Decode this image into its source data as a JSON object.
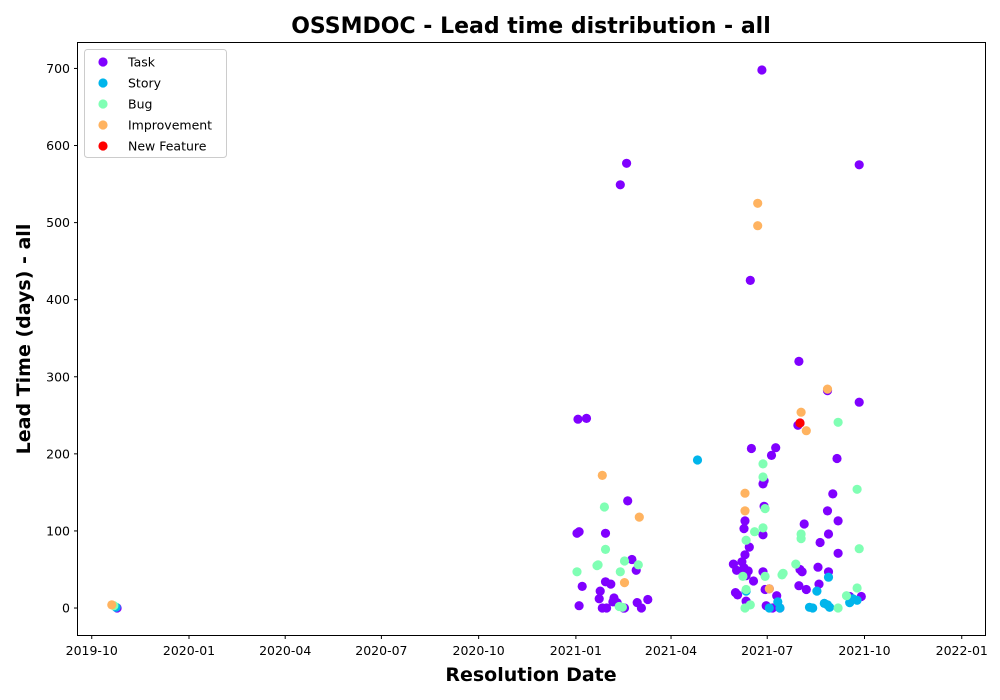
{
  "chart_data": {
    "type": "scatter",
    "title": "OSSMDOC - Lead time distribution - all",
    "xlabel": "Resolution Date",
    "ylabel": "Lead Time (days) - all",
    "x_ticks": [
      "2019-10",
      "2020-01",
      "2020-04",
      "2020-07",
      "2020-10",
      "2021-01",
      "2021-04",
      "2021-07",
      "2021-10",
      "2022-01"
    ],
    "y_ticks": [
      0,
      100,
      200,
      300,
      400,
      500,
      600,
      700
    ],
    "xlim": [
      "2019-09-18",
      "2022-01-23"
    ],
    "ylim": [
      -35,
      733
    ],
    "grid": false,
    "legend_position": "top-left",
    "series": [
      {
        "name": "Task",
        "color": "#8000ff",
        "points": [
          [
            "2019-10-25",
            0
          ],
          [
            "2021-01-02",
            97
          ],
          [
            "2021-01-03",
            245
          ],
          [
            "2021-01-04",
            99
          ],
          [
            "2021-01-04",
            3
          ],
          [
            "2021-01-07",
            28
          ],
          [
            "2021-01-11",
            246
          ],
          [
            "2021-01-23",
            12
          ],
          [
            "2021-01-24",
            22
          ],
          [
            "2021-01-26",
            0
          ],
          [
            "2021-01-29",
            34
          ],
          [
            "2021-01-29",
            97
          ],
          [
            "2021-01-30",
            0
          ],
          [
            "2021-02-03",
            31
          ],
          [
            "2021-02-05",
            8
          ],
          [
            "2021-02-06",
            13
          ],
          [
            "2021-02-09",
            7
          ],
          [
            "2021-02-12",
            549
          ],
          [
            "2021-02-15",
            0
          ],
          [
            "2021-02-16",
            0
          ],
          [
            "2021-02-18",
            577
          ],
          [
            "2021-02-19",
            139
          ],
          [
            "2021-02-23",
            63
          ],
          [
            "2021-02-27",
            49
          ],
          [
            "2021-02-28",
            7
          ],
          [
            "2021-03-04",
            0
          ],
          [
            "2021-03-10",
            11
          ],
          [
            "2021-05-30",
            57
          ],
          [
            "2021-06-01",
            20
          ],
          [
            "2021-06-02",
            49
          ],
          [
            "2021-06-03",
            17
          ],
          [
            "2021-06-07",
            60
          ],
          [
            "2021-06-09",
            103
          ],
          [
            "2021-06-09",
            52
          ],
          [
            "2021-06-10",
            47
          ],
          [
            "2021-06-10",
            69
          ],
          [
            "2021-06-10",
            113
          ],
          [
            "2021-06-11",
            9
          ],
          [
            "2021-06-11",
            42
          ],
          [
            "2021-06-13",
            48
          ],
          [
            "2021-06-14",
            79
          ],
          [
            "2021-06-15",
            425
          ],
          [
            "2021-06-16",
            207
          ],
          [
            "2021-06-18",
            35
          ],
          [
            "2021-06-26",
            698
          ],
          [
            "2021-06-27",
            47
          ],
          [
            "2021-06-27",
            95
          ],
          [
            "2021-06-27",
            161
          ],
          [
            "2021-06-28",
            132
          ],
          [
            "2021-06-28",
            165
          ],
          [
            "2021-06-29",
            24
          ],
          [
            "2021-06-30",
            3
          ],
          [
            "2021-07-03",
            25
          ],
          [
            "2021-07-05",
            198
          ],
          [
            "2021-07-06",
            0
          ],
          [
            "2021-07-09",
            208
          ],
          [
            "2021-07-10",
            16
          ],
          [
            "2021-07-13",
            0
          ],
          [
            "2021-07-30",
            237
          ],
          [
            "2021-07-31",
            320
          ],
          [
            "2021-07-31",
            29
          ],
          [
            "2021-08-01",
            50
          ],
          [
            "2021-08-01",
            240
          ],
          [
            "2021-08-03",
            47
          ],
          [
            "2021-08-05",
            109
          ],
          [
            "2021-08-07",
            24
          ],
          [
            "2021-08-18",
            53
          ],
          [
            "2021-08-19",
            31
          ],
          [
            "2021-08-20",
            85
          ],
          [
            "2021-08-27",
            282
          ],
          [
            "2021-08-27",
            126
          ],
          [
            "2021-08-28",
            96
          ],
          [
            "2021-08-28",
            47
          ],
          [
            "2021-09-01",
            148
          ],
          [
            "2021-09-05",
            194
          ],
          [
            "2021-09-06",
            113
          ],
          [
            "2021-09-06",
            71
          ],
          [
            "2021-09-17",
            15
          ],
          [
            "2021-09-26",
            267
          ],
          [
            "2021-09-26",
            575
          ],
          [
            "2021-09-28",
            15
          ]
        ]
      },
      {
        "name": "Story",
        "color": "#00b5eb",
        "points": [
          [
            "2019-10-24",
            1
          ],
          [
            "2021-04-26",
            192
          ],
          [
            "2021-06-11",
            22
          ],
          [
            "2021-07-03",
            0
          ],
          [
            "2021-07-11",
            8
          ],
          [
            "2021-07-13",
            0
          ],
          [
            "2021-08-10",
            1
          ],
          [
            "2021-08-13",
            0
          ],
          [
            "2021-08-17",
            22
          ],
          [
            "2021-08-24",
            6
          ],
          [
            "2021-08-27",
            4
          ],
          [
            "2021-08-28",
            40
          ],
          [
            "2021-08-29",
            1
          ],
          [
            "2021-09-17",
            7
          ],
          [
            "2021-09-20",
            12
          ],
          [
            "2021-09-24",
            10
          ]
        ]
      },
      {
        "name": "Bug",
        "color": "#80ffb4",
        "points": [
          [
            "2019-10-22",
            3
          ],
          [
            "2021-01-02",
            47
          ],
          [
            "2021-01-21",
            55
          ],
          [
            "2021-01-22",
            56
          ],
          [
            "2021-01-28",
            131
          ],
          [
            "2021-01-29",
            76
          ],
          [
            "2021-02-11",
            2
          ],
          [
            "2021-02-12",
            47
          ],
          [
            "2021-02-14",
            1
          ],
          [
            "2021-02-16",
            61
          ],
          [
            "2021-03-01",
            56
          ],
          [
            "2021-06-08",
            41
          ],
          [
            "2021-06-10",
            0
          ],
          [
            "2021-06-11",
            88
          ],
          [
            "2021-06-11",
            24
          ],
          [
            "2021-06-15",
            4
          ],
          [
            "2021-06-19",
            99
          ],
          [
            "2021-06-27",
            187
          ],
          [
            "2021-06-27",
            170
          ],
          [
            "2021-06-27",
            104
          ],
          [
            "2021-06-29",
            129
          ],
          [
            "2021-06-29",
            41
          ],
          [
            "2021-07-15",
            43
          ],
          [
            "2021-07-16",
            45
          ],
          [
            "2021-07-28",
            57
          ],
          [
            "2021-08-02",
            96
          ],
          [
            "2021-08-02",
            90
          ],
          [
            "2021-09-06",
            241
          ],
          [
            "2021-09-06",
            0
          ],
          [
            "2021-09-14",
            16
          ],
          [
            "2021-09-24",
            26
          ],
          [
            "2021-09-24",
            154
          ],
          [
            "2021-09-26",
            77
          ]
        ]
      },
      {
        "name": "Improvement",
        "color": "#ffb360",
        "points": [
          [
            "2019-10-20",
            4
          ],
          [
            "2021-01-26",
            172
          ],
          [
            "2021-02-16",
            33
          ],
          [
            "2021-03-02",
            118
          ],
          [
            "2021-06-10",
            149
          ],
          [
            "2021-06-10",
            126
          ],
          [
            "2021-06-22",
            525
          ],
          [
            "2021-06-22",
            496
          ],
          [
            "2021-07-03",
            25
          ],
          [
            "2021-08-02",
            254
          ],
          [
            "2021-08-07",
            230
          ],
          [
            "2021-08-27",
            284
          ]
        ]
      },
      {
        "name": "New Feature",
        "color": "#ff0000",
        "points": [
          [
            "2021-08-01",
            240
          ]
        ]
      }
    ]
  }
}
